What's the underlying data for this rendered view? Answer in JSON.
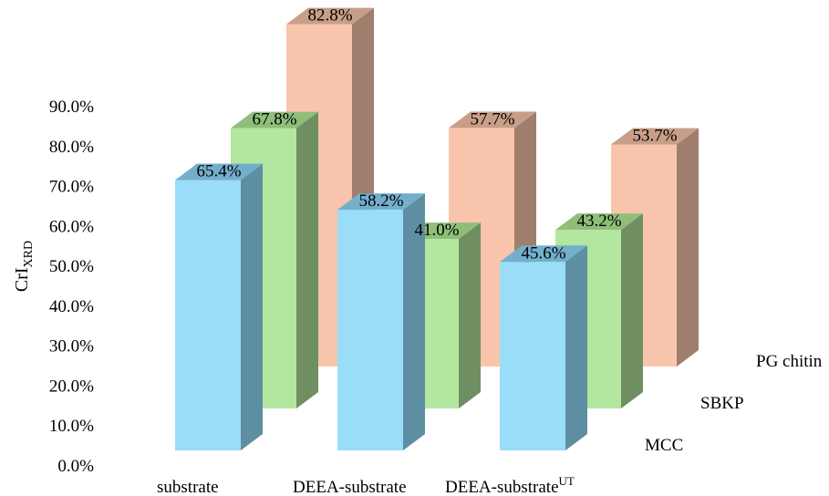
{
  "chart_data": {
    "type": "bar",
    "title": "",
    "ylabel": "CrI",
    "ylabel_sub": "XRD",
    "ylim": [
      0,
      90
    ],
    "yticks": [
      "0.0%",
      "10.0%",
      "20.0%",
      "30.0%",
      "40.0%",
      "50.0%",
      "60.0%",
      "70.0%",
      "80.0%",
      "90.0%"
    ],
    "categories": [
      "substrate",
      "DEEA-substrate",
      "DEEA-substrate"
    ],
    "category_sup": [
      "",
      "",
      "UT"
    ],
    "series": [
      {
        "name": "MCC",
        "values": [
          65.4,
          58.2,
          45.6
        ],
        "labels": [
          "65.4%",
          "58.2%",
          "45.6%"
        ],
        "colors": {
          "front": "#99DDF8",
          "side": "#5E8EA2",
          "top": "#73AFCB"
        }
      },
      {
        "name": "SBKP",
        "values": [
          67.8,
          41.0,
          43.2
        ],
        "labels": [
          "67.8%",
          "41.0%",
          "43.2%"
        ],
        "colors": {
          "front": "#B3E69E",
          "side": "#6F8F63",
          "top": "#8FBE7A"
        }
      },
      {
        "name": "PG chitin",
        "values": [
          82.8,
          57.7,
          53.7
        ],
        "labels": [
          "82.8%",
          "57.7%",
          "53.7%"
        ],
        "colors": {
          "front": "#F8C5AC",
          "side": "#A07E6D",
          "top": "#C99E88"
        }
      }
    ],
    "grid": false,
    "style": "3d-columns"
  }
}
